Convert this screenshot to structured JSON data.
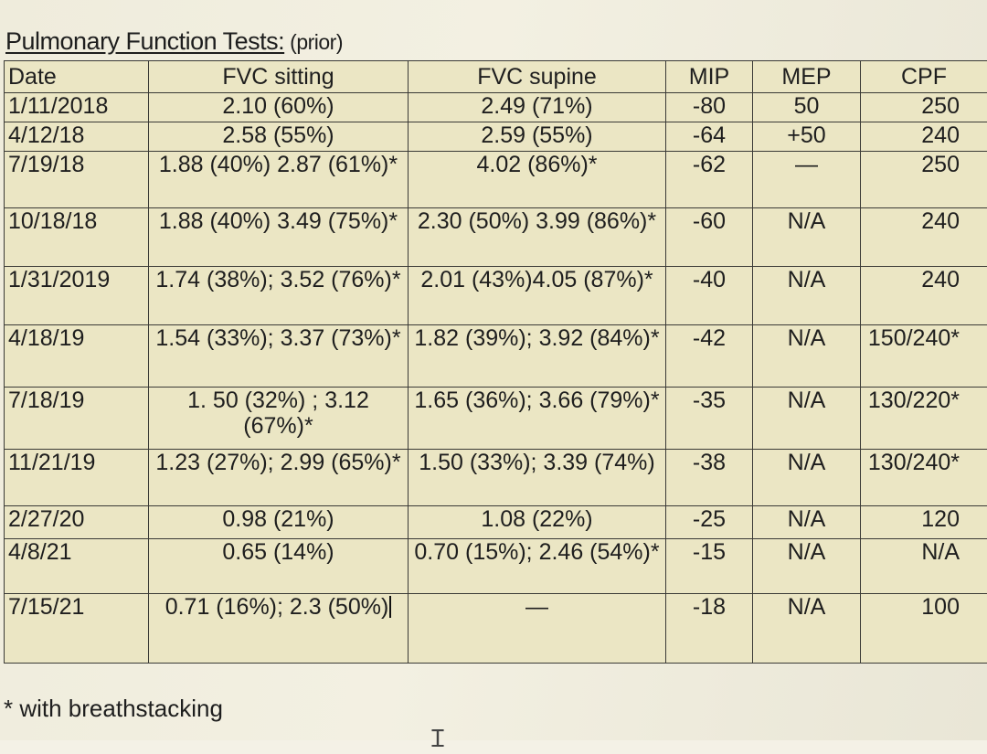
{
  "title": "Pulmonary Function Tests:",
  "subtitle": "(prior)",
  "columns": [
    "Date",
    "FVC sitting",
    "FVC supine",
    "MIP",
    "MEP",
    "CPF"
  ],
  "rows": [
    {
      "date": "1/11/2018",
      "fvc_sitting": "2.10 (60%)",
      "fvc_supine": "2.49 (71%)",
      "mip": "-80",
      "mep": "50",
      "cpf": "250"
    },
    {
      "date": "4/12/18",
      "fvc_sitting": "2.58 (55%)",
      "fvc_supine": "2.59 (55%)",
      "mip": "-64",
      "mep": "+50",
      "cpf": "240"
    },
    {
      "date": "7/19/18",
      "fvc_sitting": "1.88 (40%) 2.87 (61%)*",
      "fvc_supine": "4.02 (86%)*",
      "mip": "-62",
      "mep": "—",
      "cpf": "250"
    },
    {
      "date": "10/18/18",
      "fvc_sitting": "1.88 (40%) 3.49 (75%)*",
      "fvc_supine": "2.30 (50%) 3.99 (86%)*",
      "mip": "-60",
      "mep": "N/A",
      "cpf": "240"
    },
    {
      "date": "1/31/2019",
      "fvc_sitting": "1.74 (38%); 3.52 (76%)*",
      "fvc_supine": "2.01 (43%)4.05 (87%)*",
      "mip": "-40",
      "mep": "N/A",
      "cpf": "240"
    },
    {
      "date": "4/18/19",
      "fvc_sitting": "1.54 (33%); 3.37 (73%)*",
      "fvc_supine": "1.82 (39%); 3.92 (84%)*",
      "mip": "-42",
      "mep": "N/A",
      "cpf": "150/240*"
    },
    {
      "date": "7/18/19",
      "fvc_sitting": "1. 50 (32%) ; 3.12 (67%)*",
      "fvc_supine": "1.65 (36%); 3.66 (79%)*",
      "mip": "-35",
      "mep": "N/A",
      "cpf": "130/220*"
    },
    {
      "date": "11/21/19",
      "fvc_sitting": "1.23 (27%); 2.99 (65%)*",
      "fvc_supine": "1.50 (33%); 3.39 (74%)",
      "mip": "-38",
      "mep": "N/A",
      "cpf": "130/240*"
    },
    {
      "date": "2/27/20",
      "fvc_sitting": "0.98 (21%)",
      "fvc_supine": "1.08 (22%)",
      "mip": "-25",
      "mep": "N/A",
      "cpf": "120"
    },
    {
      "date": "4/8/21",
      "fvc_sitting": "0.65 (14%)",
      "fvc_supine": "0.70 (15%); 2.46 (54%)*",
      "mip": "-15",
      "mep": "N/A",
      "cpf": "N/A"
    },
    {
      "date": "7/15/21",
      "fvc_sitting": "0.71 (16%); 2.3 (50%)",
      "fvc_supine": "—",
      "mip": "-18",
      "mep": "N/A",
      "cpf": "100"
    }
  ],
  "footnote": "* with breathstacking",
  "pointer_glyph": "text-cursor-icon"
}
